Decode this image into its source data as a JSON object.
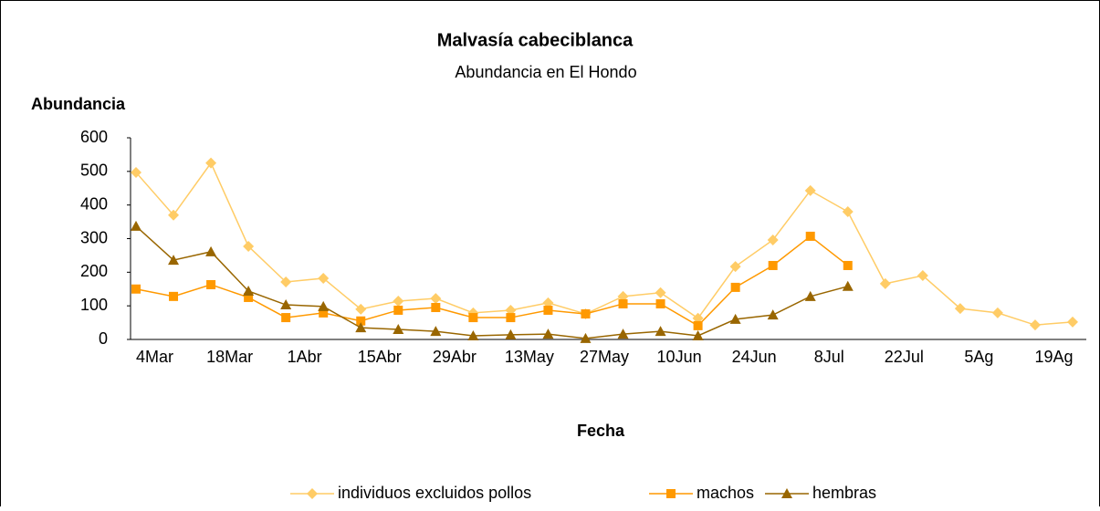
{
  "chart_data": {
    "type": "line",
    "title": "Malvasía cabeciblanca",
    "subtitle": "Abundancia en El Hondo",
    "y_label": "Abundancia",
    "x_label": "Fecha",
    "categories": [
      "4Mar",
      null,
      "18Mar",
      null,
      "1Abr",
      null,
      "15Abr",
      null,
      "29Abr",
      null,
      "13May",
      null,
      "27May",
      null,
      "10Jun",
      null,
      "24Jun",
      null,
      "8Jul",
      null,
      "22Jul",
      null,
      "5Ag",
      null,
      "19Ag",
      null
    ],
    "series": [
      {
        "name": "individuos excluidos pollos",
        "color": "#ffcc66",
        "marker": "diamond",
        "values": [
          497,
          370,
          525,
          277,
          171,
          182,
          90,
          114,
          122,
          79,
          87,
          109,
          76,
          128,
          139,
          63,
          217,
          296,
          443,
          380,
          166,
          190,
          92,
          79,
          43,
          52
        ]
      },
      {
        "name": "machos",
        "color": "#ff9900",
        "marker": "square",
        "values": [
          150,
          128,
          163,
          125,
          65,
          79,
          55,
          87,
          95,
          65,
          65,
          87,
          76,
          106,
          106,
          41,
          155,
          220,
          307,
          220,
          null,
          null,
          null,
          null,
          null,
          null
        ]
      },
      {
        "name": "hembras",
        "color": "#996600",
        "marker": "triangle",
        "values": [
          337,
          236,
          261,
          144,
          103,
          98,
          35,
          30,
          24,
          11,
          14,
          16,
          3,
          16,
          24,
          11,
          60,
          73,
          128,
          158,
          null,
          null,
          null,
          null,
          null,
          null
        ]
      }
    ],
    "ylim": [
      0,
      600
    ],
    "yticks": [
      0,
      100,
      200,
      300,
      400,
      500,
      600
    ],
    "grid": false,
    "legend": "bottom"
  }
}
